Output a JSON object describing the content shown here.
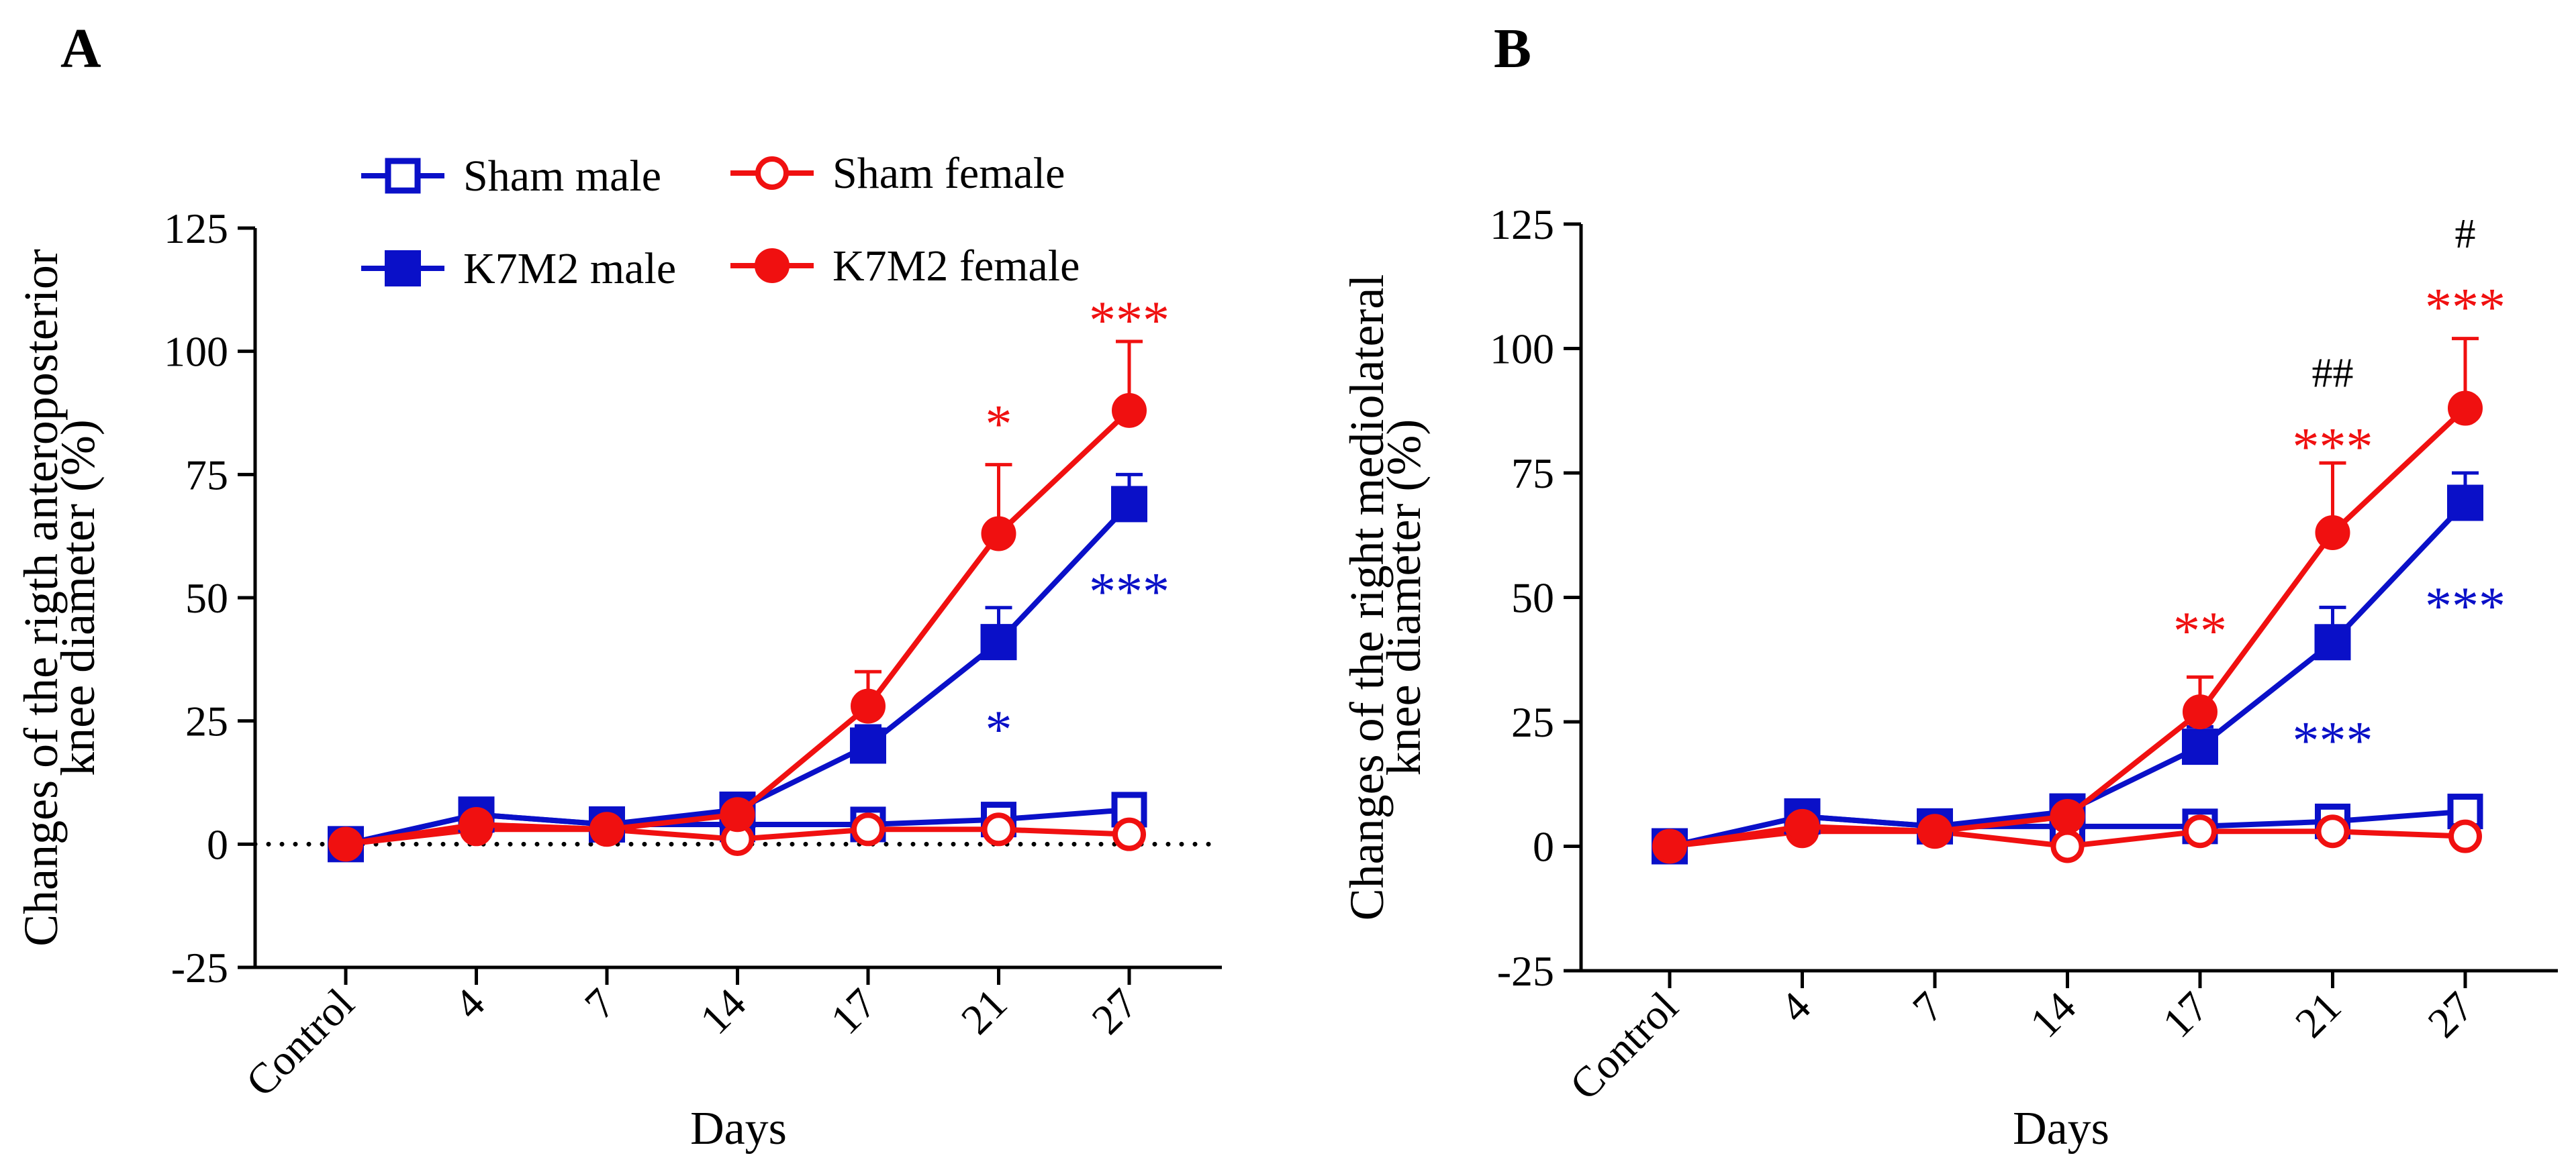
{
  "colors": {
    "blue": "#0a10c8",
    "red": "#f01010",
    "black": "#000000"
  },
  "legend": [
    {
      "name": "Sham male",
      "color": "blue",
      "marker": "square",
      "filled": false
    },
    {
      "name": "Sham female",
      "color": "red",
      "marker": "circle",
      "filled": false
    },
    {
      "name": "K7M2 male",
      "color": "blue",
      "marker": "square",
      "filled": true
    },
    {
      "name": "K7M2 female",
      "color": "red",
      "marker": "circle",
      "filled": true
    }
  ],
  "chart_data": [
    {
      "panel_label": "A",
      "type": "line",
      "xlabel": "Days",
      "ylabel_lines": [
        "Changes of the rigth anteroposterior",
        "knee diameter (%)"
      ],
      "categories": [
        "Control",
        "4",
        "7",
        "14",
        "17",
        "21",
        "27"
      ],
      "ylim": [
        -25,
        125
      ],
      "yticks": [
        "-25",
        "0",
        "25",
        "50",
        "75",
        "100",
        "125"
      ],
      "reference_line": {
        "y": 0,
        "style": "dotted"
      },
      "series": [
        {
          "name": "Sham male",
          "color": "blue",
          "marker": "square",
          "filled": false,
          "values": [
            0,
            6,
            4,
            4,
            4,
            5,
            7
          ],
          "errors": [
            0,
            1,
            1,
            1,
            1,
            1,
            3
          ]
        },
        {
          "name": "Sham female",
          "color": "red",
          "marker": "circle",
          "filled": false,
          "values": [
            0,
            3,
            3,
            1,
            3,
            3,
            2
          ],
          "errors": [
            0,
            1,
            1,
            1,
            1,
            1,
            1
          ]
        },
        {
          "name": "K7M2 male",
          "color": "blue",
          "marker": "square",
          "filled": true,
          "values": [
            0,
            6,
            4,
            7,
            20,
            41,
            69
          ],
          "errors": [
            0,
            1,
            1,
            1,
            4,
            7,
            6
          ]
        },
        {
          "name": "K7M2 female",
          "color": "red",
          "marker": "circle",
          "filled": true,
          "values": [
            0,
            4,
            3,
            6,
            28,
            63,
            88
          ],
          "errors": [
            0,
            1,
            1,
            1,
            7,
            14,
            14
          ]
        }
      ],
      "annotations": [
        {
          "text": "*",
          "category": "21",
          "y": 86,
          "color": "red"
        },
        {
          "text": "*",
          "category": "21",
          "y": 24,
          "color": "blue"
        },
        {
          "text": "***",
          "category": "27",
          "y": 107,
          "color": "red"
        },
        {
          "text": "***",
          "category": "27",
          "y": 52,
          "color": "blue"
        }
      ]
    },
    {
      "panel_label": "B",
      "type": "line",
      "xlabel": "Days",
      "ylabel_lines": [
        "Changes of the right mediolateral",
        "knee diameter (%)"
      ],
      "categories": [
        "Control",
        "4",
        "7",
        "14",
        "17",
        "21",
        "27"
      ],
      "ylim": [
        -25,
        125
      ],
      "yticks": [
        "-25",
        "0",
        "25",
        "50",
        "75",
        "100",
        "125"
      ],
      "series": [
        {
          "name": "Sham male",
          "color": "blue",
          "marker": "square",
          "filled": false,
          "values": [
            0,
            6,
            4,
            4,
            4,
            5,
            7
          ],
          "errors": [
            0,
            1,
            1,
            1,
            1,
            1,
            3
          ]
        },
        {
          "name": "Sham female",
          "color": "red",
          "marker": "circle",
          "filled": false,
          "values": [
            0,
            3,
            3,
            0,
            3,
            3,
            2
          ],
          "errors": [
            0,
            1,
            1,
            1,
            1,
            1,
            1
          ]
        },
        {
          "name": "K7M2 male",
          "color": "blue",
          "marker": "square",
          "filled": true,
          "values": [
            0,
            6,
            4,
            7,
            20,
            41,
            69
          ],
          "errors": [
            0,
            1,
            1,
            1,
            4,
            7,
            6
          ]
        },
        {
          "name": "K7M2 female",
          "color": "red",
          "marker": "circle",
          "filled": true,
          "values": [
            0,
            4,
            3,
            6,
            27,
            63,
            88
          ],
          "errors": [
            0,
            1,
            1,
            1,
            7,
            14,
            14
          ]
        }
      ],
      "annotations": [
        {
          "text": "**",
          "category": "17",
          "y": 44,
          "color": "red"
        },
        {
          "text": "***",
          "category": "21",
          "y": 81,
          "color": "red"
        },
        {
          "text": "***",
          "category": "21",
          "y": 22,
          "color": "blue"
        },
        {
          "text": "##",
          "category": "21",
          "y": 95,
          "color": "black"
        },
        {
          "text": "***",
          "category": "27",
          "y": 109,
          "color": "red"
        },
        {
          "text": "***",
          "category": "27",
          "y": 49,
          "color": "blue"
        },
        {
          "text": "#",
          "category": "27",
          "y": 123,
          "color": "black"
        }
      ]
    }
  ]
}
